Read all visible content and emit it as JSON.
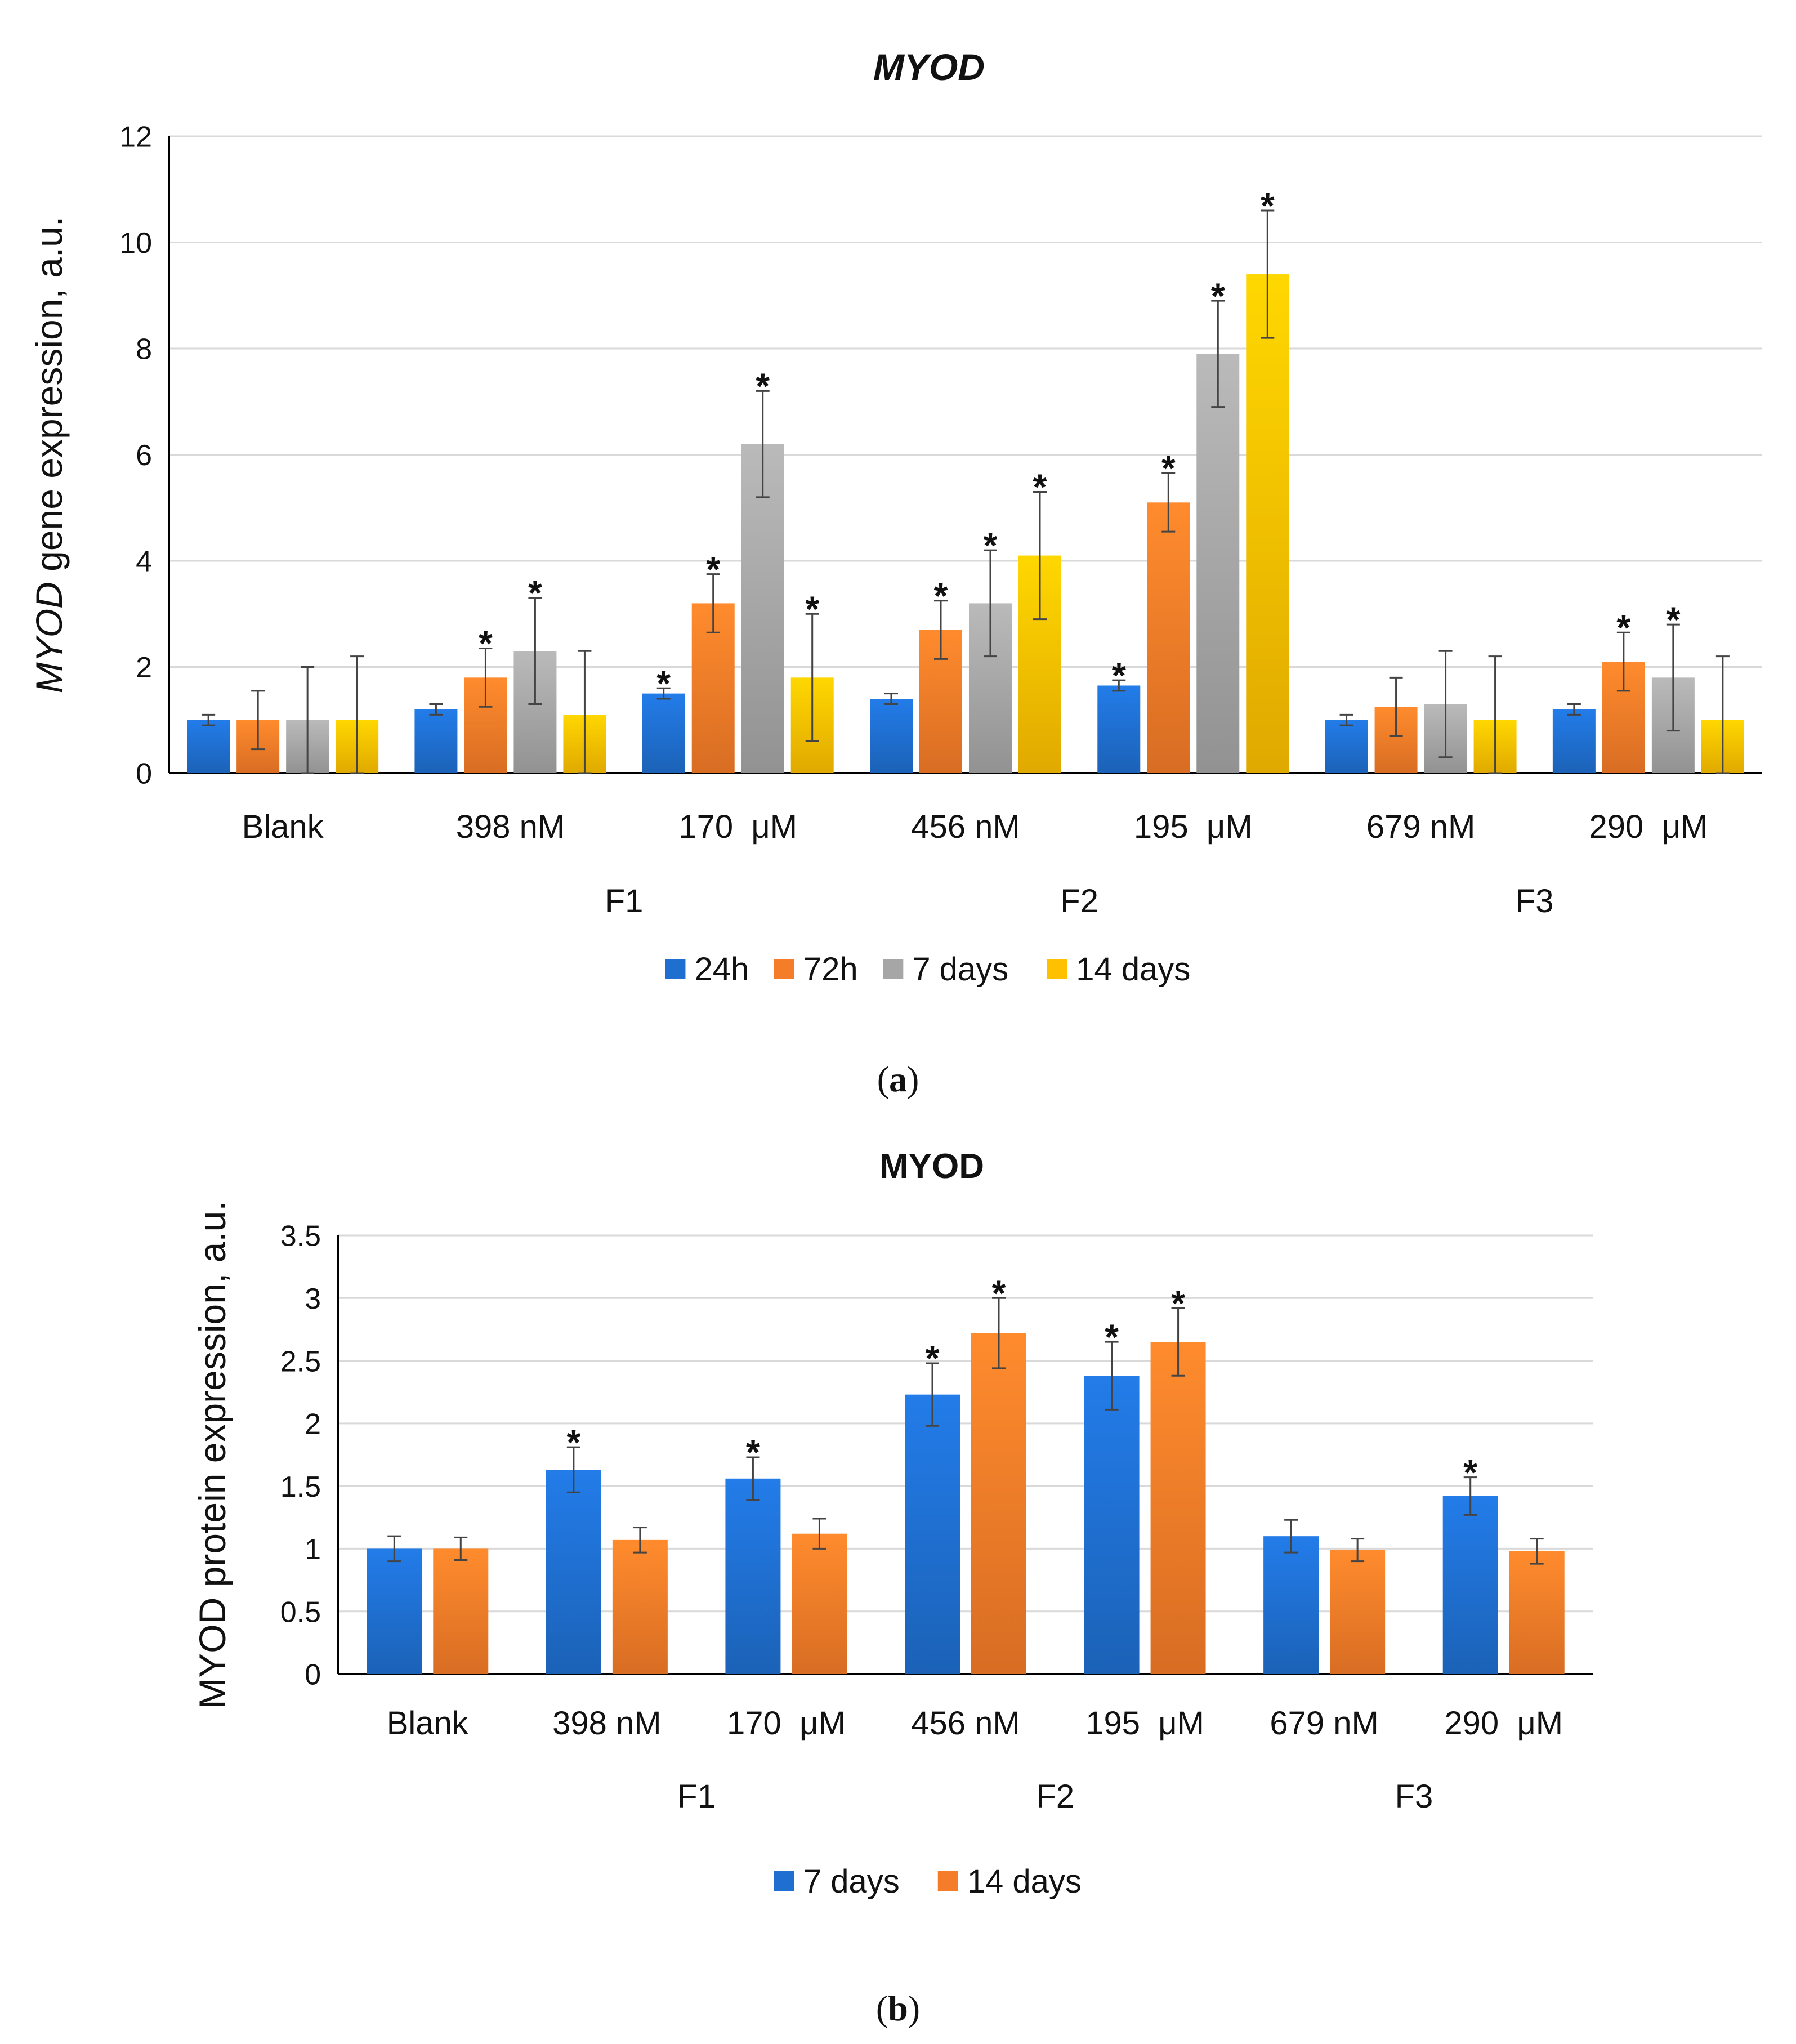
{
  "colors": {
    "blue": "#1f6fd0",
    "orange": "#f57c28",
    "gray": "#a6a6a6",
    "yellow": "#ffc000",
    "grid": "#d9d9d9",
    "axis": "#000000"
  },
  "chart_data": [
    {
      "type": "bar",
      "title": "MYOD",
      "title_italic": true,
      "ylabel_italic_part": "MYOD",
      "ylabel_rest": " gene expression, a.u.",
      "ylim": [
        0,
        12
      ],
      "yticks": [
        "0",
        "2",
        "4",
        "6",
        "8",
        "10",
        "12"
      ],
      "ytick_values": [
        0,
        2,
        4,
        6,
        8,
        10,
        12
      ],
      "categories": [
        "Blank",
        "398 nM",
        "170  μM",
        "456 nM",
        "195  μM",
        "679 nM",
        "290  μM"
      ],
      "groups": [
        {
          "label": "F1",
          "span": [
            1,
            2
          ]
        },
        {
          "label": "F2",
          "span": [
            3,
            4
          ]
        },
        {
          "label": "F3",
          "span": [
            5,
            6
          ]
        }
      ],
      "legend_position": "bottom",
      "significance_marker": "*",
      "series": [
        {
          "name": "24h",
          "color": "#1f6fd0",
          "values": [
            1.0,
            1.2,
            1.5,
            1.4,
            1.65,
            1.0,
            1.2
          ],
          "errors": [
            0.1,
            0.1,
            0.1,
            0.1,
            0.1,
            0.1,
            0.1
          ],
          "significant": [
            false,
            false,
            true,
            false,
            true,
            false,
            false
          ]
        },
        {
          "name": "72h",
          "color": "#f57c28",
          "values": [
            1.0,
            1.8,
            3.2,
            2.7,
            5.1,
            1.25,
            2.1
          ],
          "errors": [
            0.55,
            0.55,
            0.55,
            0.55,
            0.55,
            0.55,
            0.55
          ],
          "significant": [
            false,
            true,
            true,
            true,
            true,
            false,
            true
          ]
        },
        {
          "name": "7 days",
          "color": "#a6a6a6",
          "values": [
            1.0,
            2.3,
            6.2,
            3.2,
            7.9,
            1.3,
            1.8
          ],
          "errors": [
            1.0,
            1.0,
            1.0,
            1.0,
            1.0,
            1.0,
            1.0
          ],
          "significant": [
            false,
            true,
            true,
            true,
            true,
            false,
            true
          ]
        },
        {
          "name": "14 days",
          "color": "#ffc000",
          "values": [
            1.0,
            1.1,
            1.8,
            4.1,
            9.4,
            1.0,
            1.0
          ],
          "errors": [
            1.2,
            1.2,
            1.2,
            1.2,
            1.2,
            1.2,
            1.2
          ],
          "significant": [
            false,
            false,
            true,
            true,
            true,
            false,
            false
          ]
        }
      ]
    },
    {
      "type": "bar",
      "title": "MYOD",
      "title_italic": false,
      "ylabel": "MYOD protein expression, a.u.",
      "ylim": [
        0,
        3.5
      ],
      "yticks": [
        "0",
        "0.5",
        "1",
        "1.5",
        "2",
        "2.5",
        "3",
        "3.5"
      ],
      "ytick_values": [
        0,
        0.5,
        1,
        1.5,
        2,
        2.5,
        3,
        3.5
      ],
      "categories": [
        "Blank",
        "398 nM",
        "170  μM",
        "456 nM",
        "195  μM",
        "679 nM",
        "290  μM"
      ],
      "groups": [
        {
          "label": "F1",
          "span": [
            1,
            2
          ]
        },
        {
          "label": "F2",
          "span": [
            3,
            4
          ]
        },
        {
          "label": "F3",
          "span": [
            5,
            6
          ]
        }
      ],
      "legend_position": "bottom",
      "significance_marker": "*",
      "series": [
        {
          "name": "7 days",
          "color": "#1f6fd0",
          "values": [
            1.0,
            1.63,
            1.56,
            2.23,
            2.38,
            1.1,
            1.42
          ],
          "errors": [
            0.1,
            0.18,
            0.17,
            0.25,
            0.27,
            0.13,
            0.15
          ],
          "significant": [
            false,
            true,
            true,
            true,
            true,
            false,
            true
          ]
        },
        {
          "name": "14 days",
          "color": "#f57c28",
          "values": [
            1.0,
            1.07,
            1.12,
            2.72,
            2.65,
            0.99,
            0.98
          ],
          "errors": [
            0.09,
            0.1,
            0.12,
            0.28,
            0.27,
            0.09,
            0.1
          ],
          "significant": [
            false,
            false,
            false,
            true,
            true,
            false,
            false
          ]
        }
      ]
    }
  ],
  "captions": {
    "a": "a",
    "b": "b"
  }
}
